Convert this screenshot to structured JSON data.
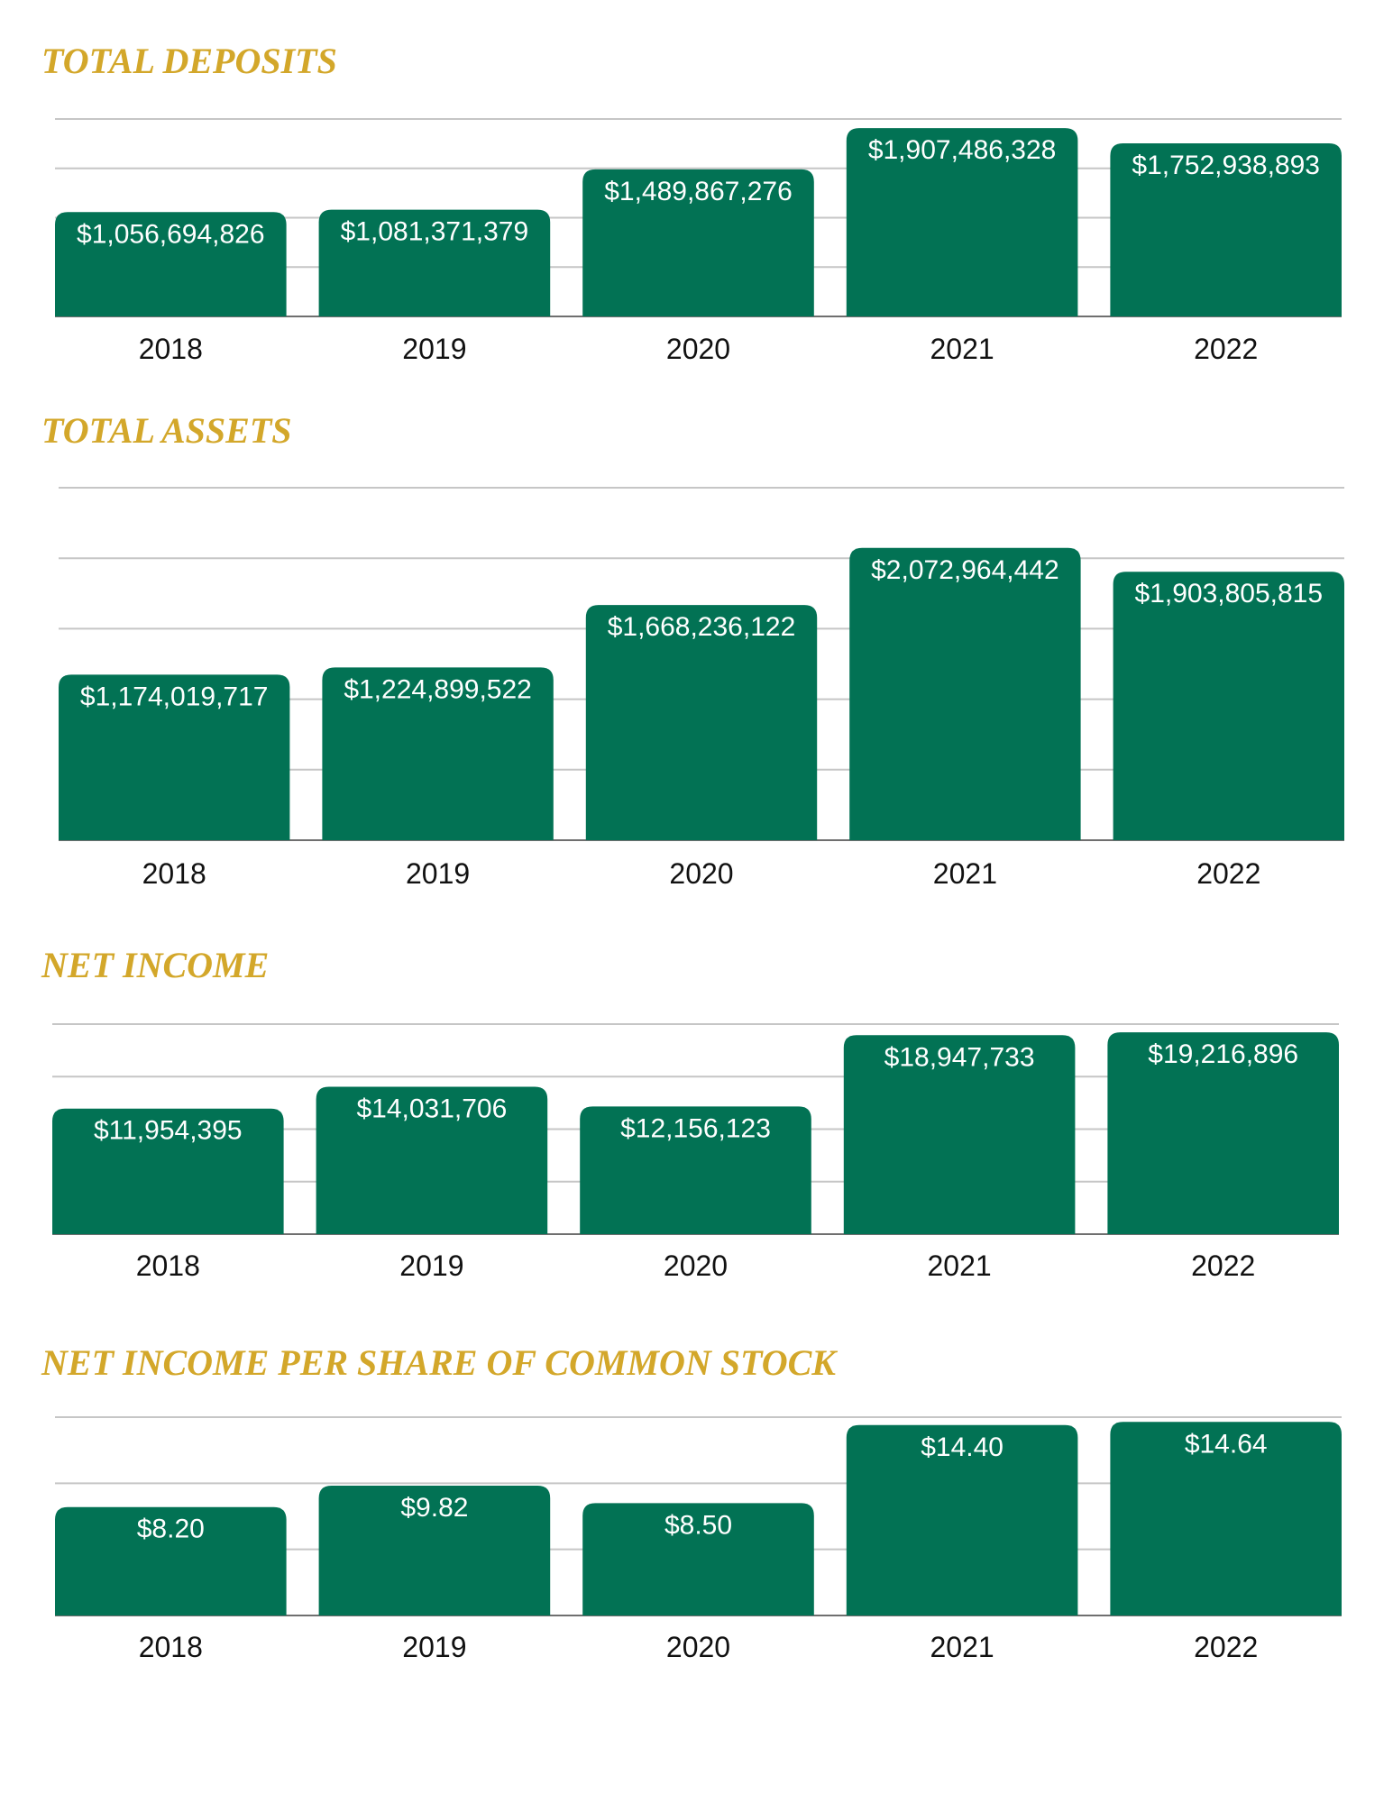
{
  "colors": {
    "title": "#d3a72a",
    "bar": "#027254",
    "grid": "#c6c6c6",
    "axis": "#6f6f6f"
  },
  "chart_data": [
    {
      "type": "bar",
      "title": "TOTAL DEPOSITS",
      "categories": [
        "2018",
        "2019",
        "2020",
        "2021",
        "2022"
      ],
      "values": [
        1056694826,
        1081371379,
        1489867276,
        1907486328,
        1752938893
      ],
      "value_labels": [
        "$1,056,694,826",
        "$1,081,371,379",
        "$1,489,867,276",
        "$1,907,486,328",
        "$1,752,938,893"
      ],
      "ylim": [
        0,
        2000000000
      ],
      "grid": true
    },
    {
      "type": "bar",
      "title": "TOTAL ASSETS",
      "categories": [
        "2018",
        "2019",
        "2020",
        "2021",
        "2022"
      ],
      "values": [
        1174019717,
        1224899522,
        1668236122,
        2072964442,
        1903805815
      ],
      "value_labels": [
        "$1,174,019,717",
        "$1,224,899,522",
        "$1,668,236,122",
        "$2,072,964,442",
        "$1,903,805,815"
      ],
      "ylim": [
        0,
        2500000000
      ],
      "grid": true
    },
    {
      "type": "bar",
      "title": "NET INCOME",
      "categories": [
        "2018",
        "2019",
        "2020",
        "2021",
        "2022"
      ],
      "values": [
        11954395,
        14031706,
        12156123,
        18947733,
        19216896
      ],
      "value_labels": [
        "$11,954,395",
        "$14,031,706",
        "$12,156,123",
        "$18,947,733",
        "$19,216,896"
      ],
      "ylim": [
        0,
        20000000
      ],
      "grid": true
    },
    {
      "type": "bar",
      "title": "NET INCOME PER SHARE OF COMMON STOCK",
      "categories": [
        "2018",
        "2019",
        "2020",
        "2021",
        "2022"
      ],
      "values": [
        8.2,
        9.82,
        8.5,
        14.4,
        14.64
      ],
      "value_labels": [
        "$8.20",
        "$9.82",
        "$8.50",
        "$14.40",
        "$14.64"
      ],
      "ylim": [
        0,
        15
      ],
      "grid": true
    }
  ]
}
